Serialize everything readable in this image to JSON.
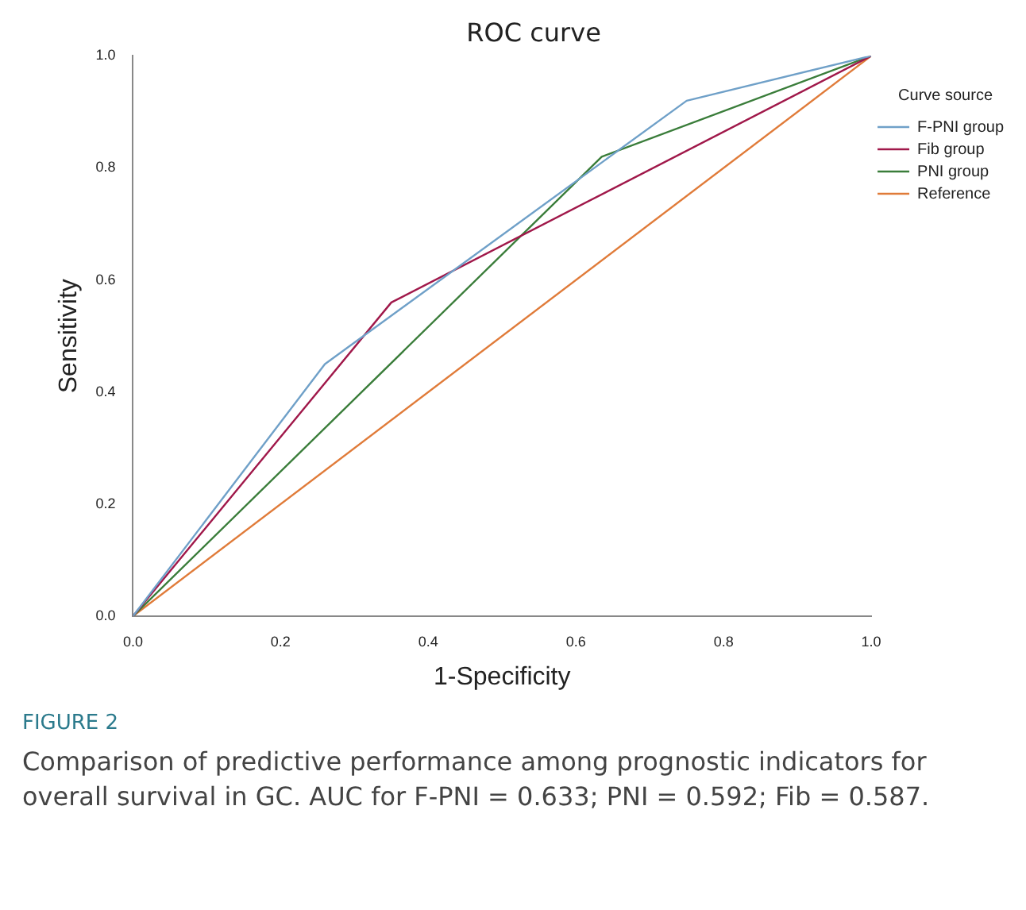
{
  "chart_data": {
    "type": "line",
    "title": "ROC curve",
    "xlabel": "1-Specificity",
    "ylabel": "Sensitivity",
    "legend_title": "Curve source",
    "legend": "top right",
    "grid": false,
    "marker": "none",
    "line_style": "solid",
    "xlim": [
      0,
      1
    ],
    "ylim": [
      0,
      1
    ],
    "xticks": [
      {
        "value": 0,
        "label": "0.0"
      },
      {
        "value": 0.2,
        "label": "0.2"
      },
      {
        "value": 0.4,
        "label": "0.4"
      },
      {
        "value": 0.6,
        "label": "0.6"
      },
      {
        "value": 0.8,
        "label": "0.8"
      },
      {
        "value": 1,
        "label": "1.0"
      }
    ],
    "yticks": [
      {
        "value": 0,
        "label": "0.0"
      },
      {
        "value": 0.2,
        "label": "0.2"
      },
      {
        "value": 0.4,
        "label": "0.4"
      },
      {
        "value": 0.6,
        "label": "0.6"
      },
      {
        "value": 0.8,
        "label": "0.8"
      },
      {
        "value": 1,
        "label": "1.0"
      }
    ],
    "series": [
      {
        "name": "F-PNI group",
        "color": "#6fa0c8",
        "x": [
          0,
          0.26,
          0.75,
          1
        ],
        "values": [
          0,
          0.45,
          0.92,
          1
        ]
      },
      {
        "name": "Fib group",
        "color": "#a0184a",
        "x": [
          0,
          0.35,
          1
        ],
        "values": [
          0,
          0.56,
          1
        ]
      },
      {
        "name": "PNI group",
        "color": "#3a7d3a",
        "x": [
          0,
          0.635,
          1
        ],
        "values": [
          0,
          0.82,
          1
        ]
      },
      {
        "name": "Reference",
        "color": "#e07b39",
        "x": [
          0,
          1
        ],
        "values": [
          0,
          1
        ]
      }
    ],
    "annotations": [
      "FIGURE 2",
      "Comparison of predictive performance among prognostic indicators for overall survival in GC. AUC for F-PNI = 0.633; PNI = 0.592; Fib = 0.587."
    ]
  }
}
